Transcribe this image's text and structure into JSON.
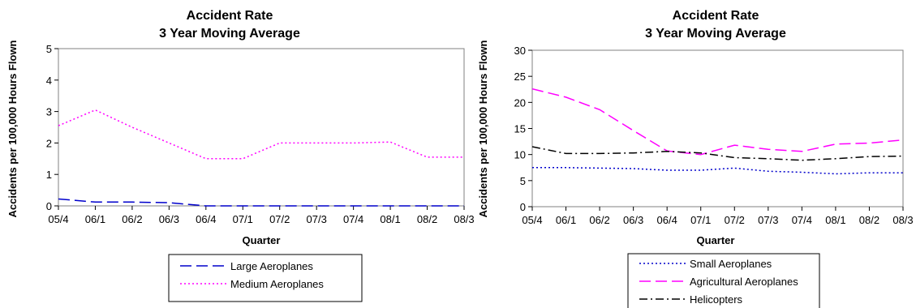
{
  "chart_data": [
    {
      "type": "line",
      "title": "Accident Rate",
      "subtitle": "3 Year Moving Average",
      "xlabel": "Quarter",
      "ylabel": "Accidents per 100,000 Hours Flown",
      "categories": [
        "05/4",
        "06/1",
        "06/2",
        "06/3",
        "06/4",
        "07/1",
        "07/2",
        "07/3",
        "07/4",
        "08/1",
        "08/2",
        "08/3"
      ],
      "ylim": [
        0,
        5
      ],
      "yticks": [
        0,
        1,
        2,
        3,
        4,
        5
      ],
      "grid": false,
      "legend_position": "bottom",
      "series": [
        {
          "name": "Large Aeroplanes",
          "color": "#0000cc",
          "dash": "long-dash",
          "values": [
            0.22,
            0.12,
            0.12,
            0.1,
            0,
            0,
            0,
            0,
            0,
            0,
            0,
            0
          ]
        },
        {
          "name": "Medium Aeroplanes",
          "color": "#ff00ff",
          "dash": "dotted",
          "values": [
            2.55,
            3.05,
            2.5,
            2.0,
            1.5,
            1.5,
            2.0,
            2.0,
            2.0,
            2.03,
            1.55,
            1.55
          ]
        }
      ]
    },
    {
      "type": "line",
      "title": "Accident Rate",
      "subtitle": "3 Year Moving Average",
      "xlabel": "Quarter",
      "ylabel": "Accidents per 100,000 Hours Flown",
      "categories": [
        "05/4",
        "06/1",
        "06/2",
        "06/3",
        "06/4",
        "07/1",
        "07/2",
        "07/3",
        "07/4",
        "08/1",
        "08/2",
        "08/3"
      ],
      "ylim": [
        0,
        30
      ],
      "yticks": [
        0,
        5,
        10,
        15,
        20,
        25,
        30
      ],
      "grid": false,
      "legend_position": "bottom",
      "series": [
        {
          "name": "Small Aeroplanes",
          "color": "#0000cc",
          "dash": "dotted",
          "values": [
            7.5,
            7.5,
            7.4,
            7.3,
            7.0,
            7.0,
            7.4,
            6.8,
            6.6,
            6.3,
            6.5,
            6.5
          ]
        },
        {
          "name": "Agricultural Aeroplanes",
          "color": "#ff00ff",
          "dash": "long-dash",
          "values": [
            22.6,
            21.0,
            18.6,
            14.6,
            10.7,
            10.0,
            11.8,
            11.0,
            10.6,
            12.0,
            12.2,
            12.8
          ]
        },
        {
          "name": "Helicopters",
          "color": "#000000",
          "dash": "dash-dot",
          "values": [
            11.5,
            10.2,
            10.2,
            10.3,
            10.6,
            10.3,
            9.4,
            9.2,
            8.9,
            9.2,
            9.6,
            9.7
          ]
        }
      ]
    }
  ]
}
